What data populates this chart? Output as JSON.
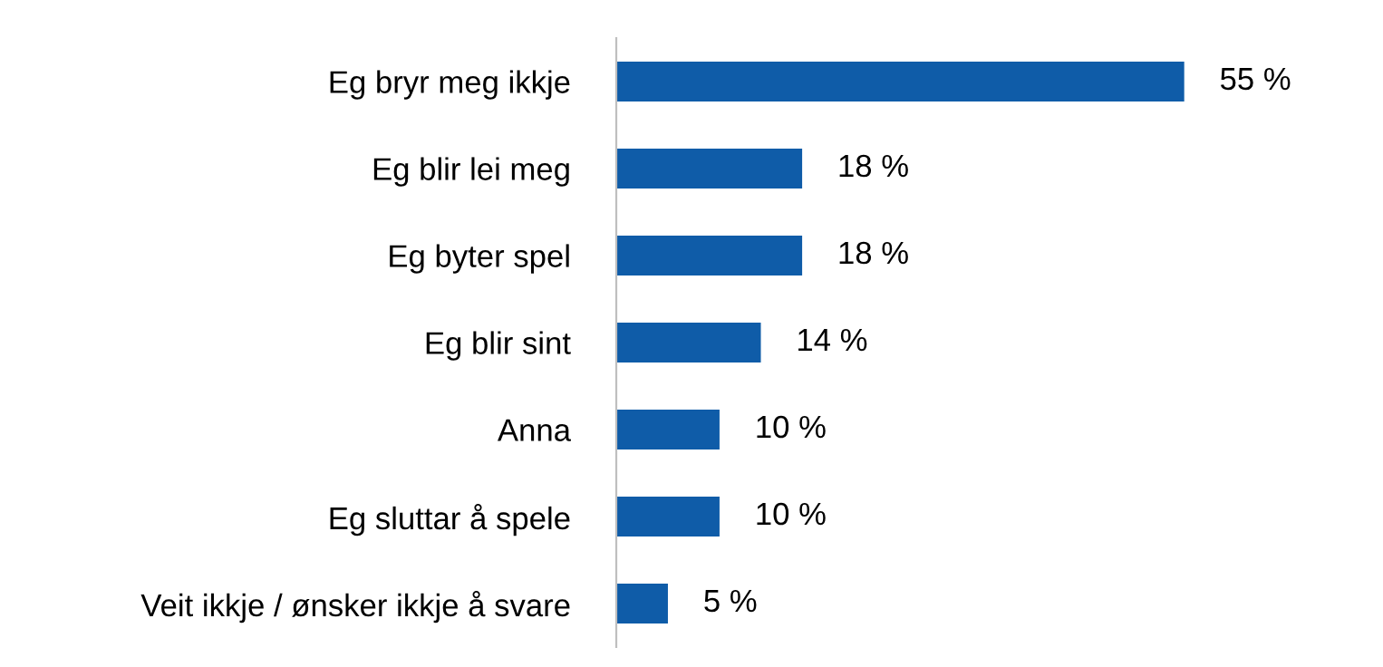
{
  "chart_data": {
    "type": "bar",
    "orientation": "horizontal",
    "categories": [
      "Eg bryr meg ikkje",
      "Eg blir lei meg",
      "Eg byter spel",
      "Eg blir sint",
      "Anna",
      "Eg sluttar å spele",
      "Veit ikkje / ønsker ikkje å svare"
    ],
    "values": [
      55,
      18,
      18,
      14,
      10,
      10,
      5
    ],
    "value_labels": [
      "55 %",
      "18 %",
      "18 %",
      "14 %",
      "10 %",
      "10 %",
      "5 %"
    ],
    "color": "#0f5ca8",
    "tick_labels": "y",
    "grid": false
  }
}
